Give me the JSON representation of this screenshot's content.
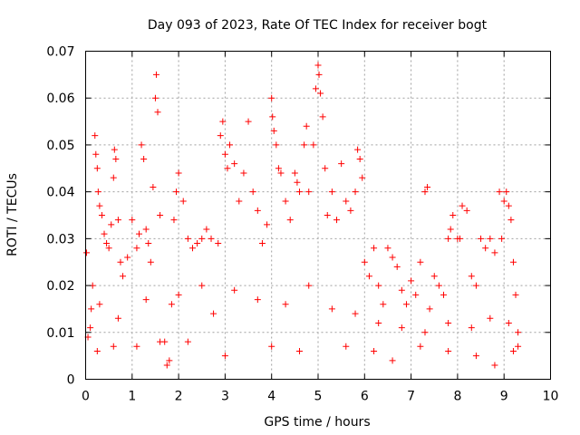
{
  "chart_data": {
    "type": "scatter",
    "title": "Day 093 of 2023, Rate Of TEC Index for receiver bogt",
    "xlabel": "GPS time / hours",
    "ylabel": "ROTI / TECUs",
    "xlim": [
      0,
      10
    ],
    "ylim": [
      0,
      0.07
    ],
    "x_ticks": [
      "0",
      "1",
      "2",
      "3",
      "4",
      "5",
      "6",
      "7",
      "8",
      "9",
      "10"
    ],
    "y_ticks": [
      "0",
      "0.01",
      "0.02",
      "0.03",
      "0.04",
      "0.05",
      "0.06",
      "0.07"
    ],
    "grid": true,
    "marker": "plus",
    "color": "#ff0000",
    "series": [
      {
        "points": [
          [
            0.02,
            0.027
          ],
          [
            0.05,
            0.009
          ],
          [
            0.1,
            0.011
          ],
          [
            0.12,
            0.015
          ],
          [
            0.15,
            0.02
          ],
          [
            0.2,
            0.052
          ],
          [
            0.22,
            0.048
          ],
          [
            0.25,
            0.045
          ],
          [
            0.27,
            0.04
          ],
          [
            0.3,
            0.037
          ],
          [
            0.35,
            0.035
          ],
          [
            0.4,
            0.031
          ],
          [
            0.45,
            0.029
          ],
          [
            0.5,
            0.028
          ],
          [
            0.55,
            0.033
          ],
          [
            0.6,
            0.043
          ],
          [
            0.62,
            0.049
          ],
          [
            0.65,
            0.047
          ],
          [
            0.7,
            0.034
          ],
          [
            0.75,
            0.025
          ],
          [
            0.8,
            0.022
          ],
          [
            0.9,
            0.026
          ],
          [
            1.0,
            0.034
          ],
          [
            1.1,
            0.028
          ],
          [
            1.15,
            0.031
          ],
          [
            1.2,
            0.05
          ],
          [
            1.25,
            0.047
          ],
          [
            1.3,
            0.032
          ],
          [
            1.35,
            0.029
          ],
          [
            1.4,
            0.025
          ],
          [
            1.45,
            0.041
          ],
          [
            1.5,
            0.06
          ],
          [
            1.52,
            0.065
          ],
          [
            1.55,
            0.057
          ],
          [
            1.6,
            0.035
          ],
          [
            1.7,
            0.008
          ],
          [
            1.75,
            0.003
          ],
          [
            1.8,
            0.004
          ],
          [
            1.85,
            0.016
          ],
          [
            1.9,
            0.034
          ],
          [
            1.95,
            0.04
          ],
          [
            2.0,
            0.044
          ],
          [
            2.1,
            0.038
          ],
          [
            2.2,
            0.03
          ],
          [
            2.3,
            0.028
          ],
          [
            2.4,
            0.029
          ],
          [
            2.5,
            0.03
          ],
          [
            2.6,
            0.032
          ],
          [
            2.7,
            0.03
          ],
          [
            2.75,
            0.014
          ],
          [
            2.85,
            0.029
          ],
          [
            2.9,
            0.052
          ],
          [
            2.95,
            0.055
          ],
          [
            3.0,
            0.048
          ],
          [
            3.05,
            0.045
          ],
          [
            3.1,
            0.05
          ],
          [
            3.2,
            0.046
          ],
          [
            3.3,
            0.038
          ],
          [
            3.4,
            0.044
          ],
          [
            3.5,
            0.055
          ],
          [
            3.6,
            0.04
          ],
          [
            3.7,
            0.036
          ],
          [
            3.8,
            0.029
          ],
          [
            3.9,
            0.033
          ],
          [
            4.0,
            0.06
          ],
          [
            4.02,
            0.056
          ],
          [
            4.05,
            0.053
          ],
          [
            4.1,
            0.05
          ],
          [
            4.15,
            0.045
          ],
          [
            4.2,
            0.044
          ],
          [
            4.3,
            0.038
          ],
          [
            4.4,
            0.034
          ],
          [
            4.5,
            0.044
          ],
          [
            4.55,
            0.042
          ],
          [
            4.6,
            0.04
          ],
          [
            4.7,
            0.05
          ],
          [
            4.75,
            0.054
          ],
          [
            4.8,
            0.04
          ],
          [
            4.9,
            0.05
          ],
          [
            4.95,
            0.062
          ],
          [
            5.0,
            0.067
          ],
          [
            5.02,
            0.065
          ],
          [
            5.05,
            0.061
          ],
          [
            5.1,
            0.056
          ],
          [
            5.15,
            0.045
          ],
          [
            5.2,
            0.035
          ],
          [
            5.3,
            0.04
          ],
          [
            5.4,
            0.034
          ],
          [
            5.5,
            0.046
          ],
          [
            5.6,
            0.038
          ],
          [
            5.7,
            0.036
          ],
          [
            5.8,
            0.04
          ],
          [
            5.85,
            0.049
          ],
          [
            5.9,
            0.047
          ],
          [
            5.95,
            0.043
          ],
          [
            6.0,
            0.025
          ],
          [
            6.1,
            0.022
          ],
          [
            6.2,
            0.028
          ],
          [
            6.3,
            0.02
          ],
          [
            6.4,
            0.016
          ],
          [
            6.5,
            0.028
          ],
          [
            6.6,
            0.026
          ],
          [
            6.7,
            0.024
          ],
          [
            6.8,
            0.019
          ],
          [
            6.9,
            0.016
          ],
          [
            7.0,
            0.021
          ],
          [
            7.1,
            0.018
          ],
          [
            7.2,
            0.025
          ],
          [
            7.3,
            0.04
          ],
          [
            7.35,
            0.041
          ],
          [
            7.4,
            0.015
          ],
          [
            7.5,
            0.022
          ],
          [
            7.6,
            0.02
          ],
          [
            7.7,
            0.018
          ],
          [
            7.8,
            0.03
          ],
          [
            7.85,
            0.032
          ],
          [
            7.9,
            0.035
          ],
          [
            8.0,
            0.03
          ],
          [
            8.05,
            0.03
          ],
          [
            8.1,
            0.037
          ],
          [
            8.2,
            0.036
          ],
          [
            8.3,
            0.022
          ],
          [
            8.4,
            0.02
          ],
          [
            8.5,
            0.03
          ],
          [
            8.6,
            0.028
          ],
          [
            8.7,
            0.03
          ],
          [
            8.8,
            0.027
          ],
          [
            8.9,
            0.04
          ],
          [
            8.95,
            0.03
          ],
          [
            9.0,
            0.038
          ],
          [
            9.05,
            0.04
          ],
          [
            9.1,
            0.037
          ],
          [
            9.15,
            0.034
          ],
          [
            9.2,
            0.025
          ],
          [
            9.25,
            0.018
          ],
          [
            9.3,
            0.01
          ],
          [
            0.25,
            0.006
          ],
          [
            0.6,
            0.007
          ],
          [
            1.1,
            0.007
          ],
          [
            1.6,
            0.008
          ],
          [
            2.2,
            0.008
          ],
          [
            3.0,
            0.005
          ],
          [
            4.0,
            0.007
          ],
          [
            4.6,
            0.006
          ],
          [
            5.6,
            0.007
          ],
          [
            6.2,
            0.006
          ],
          [
            6.6,
            0.004
          ],
          [
            7.2,
            0.007
          ],
          [
            7.8,
            0.006
          ],
          [
            8.4,
            0.005
          ],
          [
            8.8,
            0.003
          ],
          [
            9.2,
            0.006
          ],
          [
            9.3,
            0.007
          ],
          [
            0.3,
            0.016
          ],
          [
            0.7,
            0.013
          ],
          [
            1.3,
            0.017
          ],
          [
            2.0,
            0.018
          ],
          [
            2.5,
            0.02
          ],
          [
            3.2,
            0.019
          ],
          [
            3.7,
            0.017
          ],
          [
            4.3,
            0.016
          ],
          [
            4.8,
            0.02
          ],
          [
            5.3,
            0.015
          ],
          [
            5.8,
            0.014
          ],
          [
            6.3,
            0.012
          ],
          [
            6.8,
            0.011
          ],
          [
            7.3,
            0.01
          ],
          [
            7.8,
            0.012
          ],
          [
            8.3,
            0.011
          ],
          [
            8.7,
            0.013
          ],
          [
            9.1,
            0.012
          ]
        ]
      }
    ]
  }
}
